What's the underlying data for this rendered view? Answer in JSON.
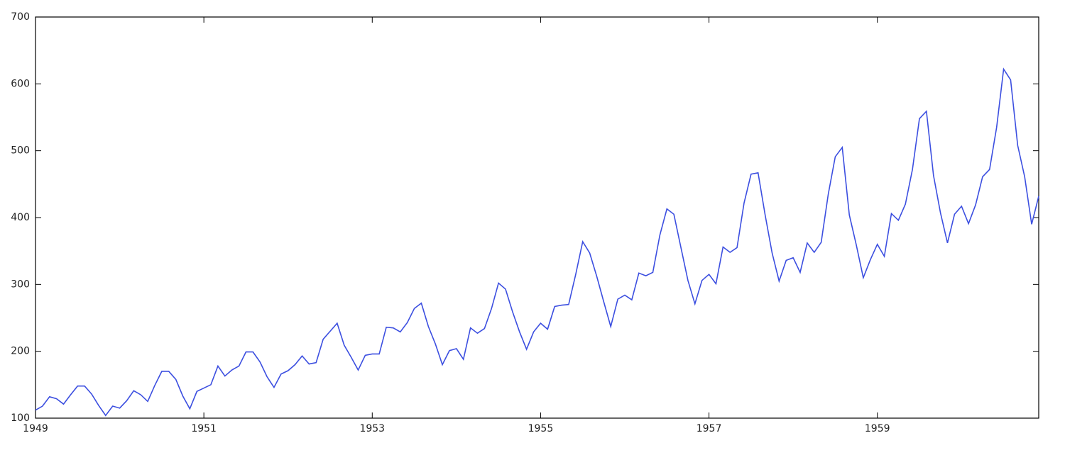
{
  "chart_data": {
    "type": "line",
    "color": "#3c4fe0",
    "x": [
      1949,
      1949.083,
      1949.167,
      1949.25,
      1949.333,
      1949.417,
      1949.5,
      1949.583,
      1949.667,
      1949.75,
      1949.833,
      1949.917,
      1950,
      1950.083,
      1950.167,
      1950.25,
      1950.333,
      1950.417,
      1950.5,
      1950.583,
      1950.667,
      1950.75,
      1950.833,
      1950.917,
      1951,
      1951.083,
      1951.167,
      1951.25,
      1951.333,
      1951.417,
      1951.5,
      1951.583,
      1951.667,
      1951.75,
      1951.833,
      1951.917,
      1952,
      1952.083,
      1952.167,
      1952.25,
      1952.333,
      1952.417,
      1952.5,
      1952.583,
      1952.667,
      1952.75,
      1952.833,
      1952.917,
      1953,
      1953.083,
      1953.167,
      1953.25,
      1953.333,
      1953.417,
      1953.5,
      1953.583,
      1953.667,
      1953.75,
      1953.833,
      1953.917,
      1954,
      1954.083,
      1954.167,
      1954.25,
      1954.333,
      1954.417,
      1954.5,
      1954.583,
      1954.667,
      1954.75,
      1954.833,
      1954.917,
      1955,
      1955.083,
      1955.167,
      1955.25,
      1955.333,
      1955.417,
      1955.5,
      1955.583,
      1955.667,
      1955.75,
      1955.833,
      1955.917,
      1956,
      1956.083,
      1956.167,
      1956.25,
      1956.333,
      1956.417,
      1956.5,
      1956.583,
      1956.667,
      1956.75,
      1956.833,
      1956.917,
      1957,
      1957.083,
      1957.167,
      1957.25,
      1957.333,
      1957.417,
      1957.5,
      1957.583,
      1957.667,
      1957.75,
      1957.833,
      1957.917,
      1958,
      1958.083,
      1958.167,
      1958.25,
      1958.333,
      1958.417,
      1958.5,
      1958.583,
      1958.667,
      1958.75,
      1958.833,
      1958.917,
      1959,
      1959.083,
      1959.167,
      1959.25,
      1959.333,
      1959.417,
      1959.5,
      1959.583,
      1959.667,
      1959.75,
      1959.833,
      1959.917,
      1960,
      1960.083,
      1960.167,
      1960.25,
      1960.333,
      1960.417,
      1960.5,
      1960.583,
      1960.667,
      1960.75,
      1960.833,
      1960.917
    ],
    "values": [
      112,
      118,
      132,
      129,
      121,
      135,
      148,
      148,
      136,
      119,
      104,
      118,
      115,
      126,
      141,
      135,
      125,
      149,
      170,
      170,
      158,
      133,
      114,
      140,
      145,
      150,
      178,
      163,
      172,
      178,
      199,
      199,
      184,
      162,
      146,
      166,
      171,
      180,
      193,
      181,
      183,
      218,
      230,
      242,
      209,
      191,
      172,
      194,
      196,
      196,
      236,
      235,
      229,
      243,
      264,
      272,
      237,
      211,
      180,
      201,
      204,
      188,
      235,
      227,
      234,
      264,
      302,
      293,
      259,
      229,
      203,
      229,
      242,
      233,
      267,
      269,
      270,
      315,
      364,
      347,
      312,
      274,
      237,
      278,
      284,
      277,
      317,
      313,
      318,
      374,
      413,
      405,
      355,
      306,
      271,
      306,
      315,
      301,
      356,
      348,
      355,
      422,
      465,
      467,
      404,
      347,
      305,
      336,
      340,
      318,
      362,
      348,
      363,
      435,
      491,
      505,
      404,
      359,
      310,
      337,
      360,
      342,
      406,
      396,
      420,
      472,
      548,
      559,
      463,
      407,
      362,
      405,
      417,
      391,
      419,
      461,
      472,
      535,
      622,
      606,
      508,
      461,
      390,
      432
    ],
    "xlim": [
      1949,
      1960.917
    ],
    "xticks": [
      1949,
      1951,
      1953,
      1955,
      1957,
      1959
    ],
    "ylim": [
      100,
      700
    ],
    "yticks": [
      100,
      200,
      300,
      400,
      500,
      600,
      700
    ]
  }
}
